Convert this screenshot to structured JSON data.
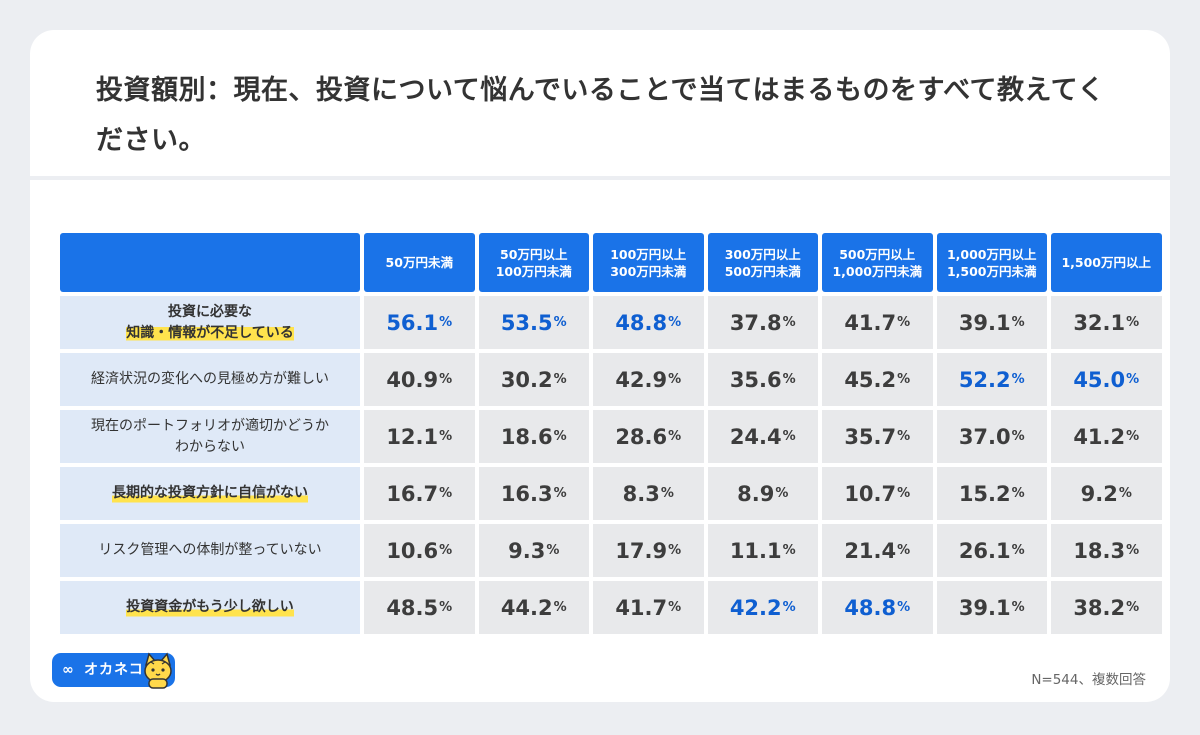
{
  "title": "投資額別：現在、投資について悩んでいることで当てはまるものをすべて教えてください。",
  "footnote": "N=544、複数回答",
  "logo": {
    "text": "オカネコ",
    "mark": "∞",
    "icon": "cat-mascot-icon"
  },
  "colors": {
    "header": "#1a73e8",
    "row_label_bg": "#dfe9f7",
    "value_bg": "#e8e9eb",
    "highlight_value": "#0f5fd1",
    "label_marker": "#ffe34d"
  },
  "chart_data": {
    "type": "table",
    "columns": [
      "50万円未満",
      "50万円以上\n100万円未満",
      "100万円以上\n300万円未満",
      "300万円以上\n500万円未満",
      "500万円以上\n1,000万円未満",
      "1,000万円以上\n1,500万円未満",
      "1,500万円以上"
    ],
    "unit": "%",
    "rows": [
      {
        "label": "投資に必要な\n知識・情報が不足している",
        "emphasis": true,
        "values": [
          "56.1",
          "53.5",
          "48.8",
          "37.8",
          "41.7",
          "39.1",
          "32.1"
        ],
        "highlighted": [
          true,
          true,
          true,
          false,
          false,
          false,
          false
        ]
      },
      {
        "label": "経済状況の変化への見極め方が難しい",
        "emphasis": false,
        "values": [
          "40.9",
          "30.2",
          "42.9",
          "35.6",
          "45.2",
          "52.2",
          "45.0"
        ],
        "highlighted": [
          false,
          false,
          false,
          false,
          false,
          true,
          true
        ]
      },
      {
        "label": "現在のポートフォリオが適切かどうか\nわからない",
        "emphasis": false,
        "values": [
          "12.1",
          "18.6",
          "28.6",
          "24.4",
          "35.7",
          "37.0",
          "41.2"
        ],
        "highlighted": [
          false,
          false,
          false,
          false,
          false,
          false,
          false
        ]
      },
      {
        "label": "長期的な投資方針に自信がない",
        "emphasis": true,
        "values": [
          "16.7",
          "16.3",
          "8.3",
          "8.9",
          "10.7",
          "15.2",
          "9.2"
        ],
        "highlighted": [
          false,
          false,
          false,
          false,
          false,
          false,
          false
        ]
      },
      {
        "label": "リスク管理への体制が整っていない",
        "emphasis": false,
        "values": [
          "10.6",
          "9.3",
          "17.9",
          "11.1",
          "21.4",
          "26.1",
          "18.3"
        ],
        "highlighted": [
          false,
          false,
          false,
          false,
          false,
          false,
          false
        ]
      },
      {
        "label": "投資資金がもう少し欲しい",
        "emphasis": true,
        "values": [
          "48.5",
          "44.2",
          "41.7",
          "42.2",
          "48.8",
          "39.1",
          "38.2"
        ],
        "highlighted": [
          false,
          false,
          false,
          true,
          true,
          false,
          false
        ]
      }
    ]
  }
}
